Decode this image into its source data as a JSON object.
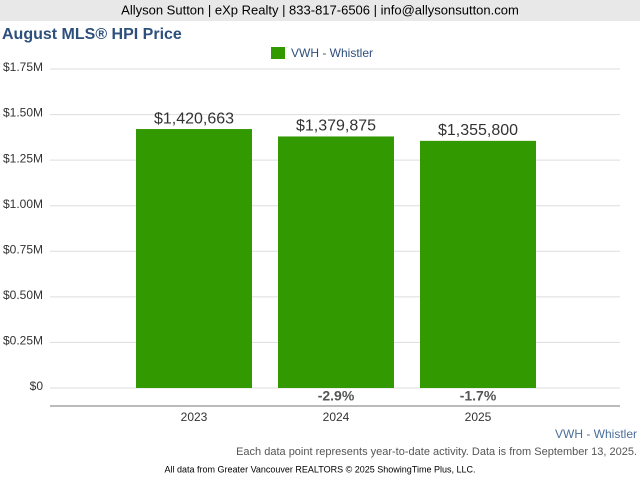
{
  "header": "Allyson Sutton | eXp Realty | 833-817-6506 | info@allysonsutton.com",
  "chart_data": {
    "type": "bar",
    "title": "August MLS® HPI Price",
    "categories": [
      "2023",
      "2024",
      "2025"
    ],
    "series": [
      {
        "name": "VWH - Whistler",
        "color": "#339900",
        "values": [
          1420663,
          1379875,
          1355800
        ],
        "value_labels": [
          "$1,420,663",
          "$1,379,875",
          "$1,355,800"
        ]
      }
    ],
    "change_labels": [
      null,
      "-2.9%",
      "-1.7%"
    ],
    "ylim": [
      0,
      1750000
    ],
    "yticks": [
      {
        "value": 0,
        "label": "$0"
      },
      {
        "value": 250000,
        "label": "$0.25M"
      },
      {
        "value": 500000,
        "label": "$0.50M"
      },
      {
        "value": 750000,
        "label": "$0.75M"
      },
      {
        "value": 1000000,
        "label": "$1.00M"
      },
      {
        "value": 1250000,
        "label": "$1.25M"
      },
      {
        "value": 1500000,
        "label": "$1.50M"
      },
      {
        "value": 1750000,
        "label": "$1.75M"
      }
    ],
    "grid": true,
    "area_label": "VWH - Whistler",
    "note": "Each data point represents year-to-date activity. Data is from September 13, 2025.",
    "source": "All data from Greater Vancouver REALTORS © 2025 ShowingTime Plus, LLC."
  }
}
